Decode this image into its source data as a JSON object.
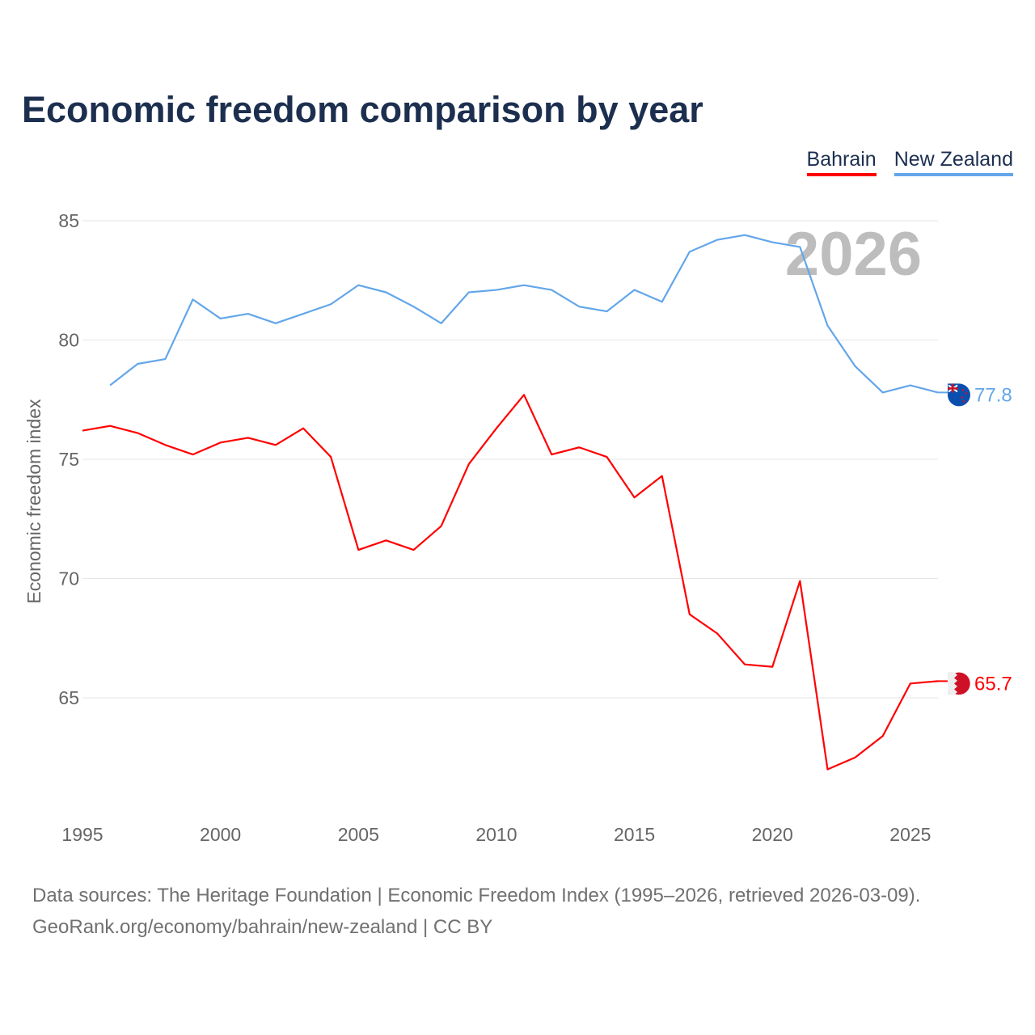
{
  "title": "Economic freedom comparison by year",
  "footer": {
    "line1": "Data sources: The Heritage Foundation | Economic Freedom Index (1995–2026, retrieved 2026-03-09).",
    "line2": "GeoRank.org/economy/bahrain/new-zealand | CC BY"
  },
  "chart_data": {
    "type": "line",
    "title": "Economic freedom comparison by year",
    "ylabel": "Economic freedom index",
    "xlabel": "",
    "xlim": [
      1995,
      2026
    ],
    "ylim": [
      60,
      86.5
    ],
    "yticks": [
      65,
      70,
      75,
      80,
      85
    ],
    "xticks": [
      1995,
      2000,
      2005,
      2010,
      2015,
      2020,
      2025
    ],
    "grid": true,
    "legend_position": "top-right",
    "year_watermark": "2026",
    "series": [
      {
        "name": "Bahrain",
        "color": "#ff0000",
        "end_label": "65.7",
        "flag": "bahrain-flag",
        "x": [
          1995,
          1996,
          1997,
          1998,
          1999,
          2000,
          2001,
          2002,
          2003,
          2004,
          2005,
          2006,
          2007,
          2008,
          2009,
          2010,
          2011,
          2012,
          2013,
          2014,
          2015,
          2016,
          2017,
          2018,
          2019,
          2020,
          2021,
          2022,
          2023,
          2024,
          2025,
          2026
        ],
        "values": [
          76.2,
          76.4,
          76.1,
          75.6,
          75.2,
          75.7,
          75.9,
          75.6,
          76.3,
          75.1,
          71.2,
          71.6,
          71.2,
          72.2,
          74.8,
          76.3,
          77.7,
          75.2,
          75.5,
          75.1,
          73.4,
          74.3,
          68.5,
          67.7,
          66.4,
          66.3,
          69.9,
          62.0,
          62.5,
          63.4,
          65.6,
          65.7
        ]
      },
      {
        "name": "New Zealand",
        "color": "#63a6ea",
        "end_label": "77.8",
        "flag": "new-zealand-flag",
        "x": [
          1996,
          1997,
          1998,
          1999,
          2000,
          2001,
          2002,
          2003,
          2004,
          2005,
          2006,
          2007,
          2008,
          2009,
          2010,
          2011,
          2012,
          2013,
          2014,
          2015,
          2016,
          2017,
          2018,
          2019,
          2020,
          2021,
          2022,
          2023,
          2024,
          2025,
          2026
        ],
        "values": [
          78.1,
          79.0,
          79.2,
          81.7,
          80.9,
          81.1,
          80.7,
          81.1,
          81.5,
          82.3,
          82.0,
          81.4,
          80.7,
          82.0,
          82.1,
          82.3,
          82.1,
          81.4,
          81.2,
          82.1,
          81.6,
          83.7,
          84.2,
          84.4,
          84.1,
          83.9,
          80.6,
          78.9,
          77.8,
          78.1,
          77.8
        ]
      }
    ]
  }
}
